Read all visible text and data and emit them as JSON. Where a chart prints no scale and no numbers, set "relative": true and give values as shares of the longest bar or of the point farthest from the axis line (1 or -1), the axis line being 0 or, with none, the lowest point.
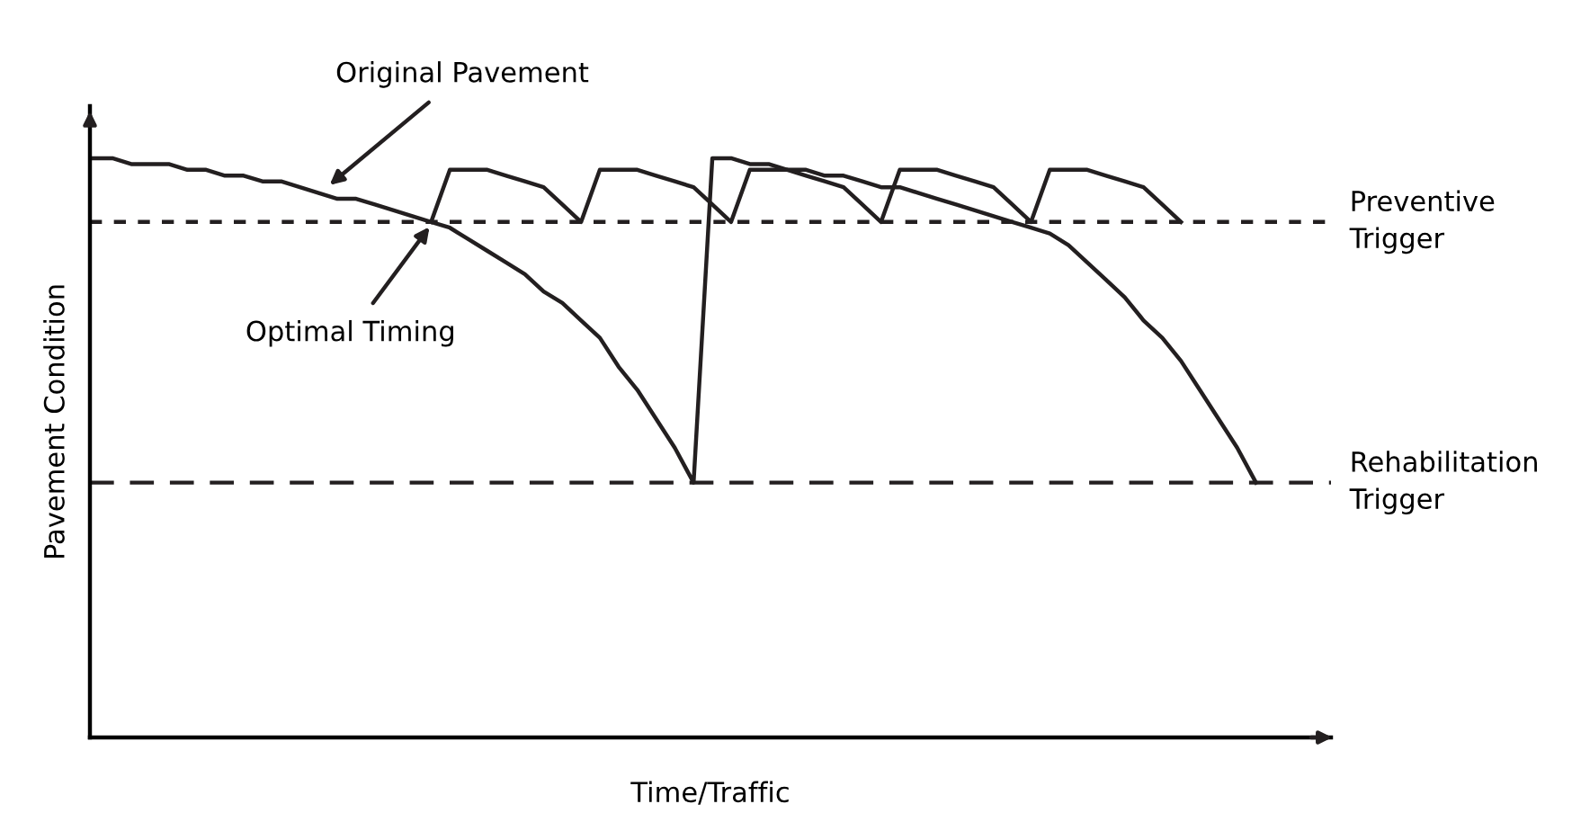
{
  "chart_data": {
    "type": "line",
    "relative": true,
    "xlabel": "Time/Traffic",
    "ylabel": "Pavement Condition",
    "line_style": "solid",
    "categories": [
      null,
      null,
      null,
      null,
      null,
      null,
      null,
      null,
      null,
      null,
      null,
      null,
      null,
      null,
      null,
      null,
      null,
      null,
      null,
      null,
      null,
      null,
      null,
      null,
      null,
      null,
      null,
      null,
      null,
      null,
      null,
      null,
      null,
      null,
      null,
      null,
      null,
      null,
      null,
      null,
      null,
      null,
      null,
      null,
      null,
      null,
      null,
      null,
      null,
      null,
      null,
      null,
      null,
      null,
      null,
      null,
      null,
      null,
      null,
      null,
      null,
      null,
      null,
      null,
      null,
      null,
      null
    ],
    "series": [
      {
        "color": "#231f20",
        "values": [
          1,
          1,
          0.99,
          0.99,
          0.99,
          0.98,
          0.98,
          0.97,
          0.97,
          0.96,
          0.96,
          0.95,
          0.94,
          0.93,
          0.93,
          0.92,
          0.91,
          0.9,
          0.89,
          0.88,
          0.86,
          0.84,
          0.82,
          0.8,
          0.77,
          0.75,
          0.72,
          0.69,
          0.64,
          0.6,
          0.55,
          0.5,
          0.44,
          1,
          1,
          0.99,
          0.99,
          0.98,
          0.98,
          0.97,
          0.97,
          0.96,
          0.95,
          0.95,
          0.94,
          0.93,
          0.92,
          0.91,
          0.9,
          0.89,
          0.88,
          0.87,
          0.85,
          0.82,
          0.79,
          0.76,
          0.72,
          0.69,
          0.65,
          0.6,
          0.55,
          0.5,
          0.44,
          null,
          null,
          null,
          null
        ]
      },
      {
        "color": "#231f20",
        "values": [
          null,
          null,
          null,
          null,
          null,
          null,
          null,
          null,
          null,
          null,
          null,
          null,
          null,
          null,
          null,
          null,
          null,
          null,
          0.89,
          0.98,
          0.98,
          0.98,
          0.97,
          0.96,
          0.95,
          0.92,
          0.89,
          0.98,
          0.98,
          0.98,
          0.97,
          0.96,
          0.95,
          0.92,
          0.89,
          0.98,
          0.98,
          0.98,
          0.97,
          0.96,
          0.95,
          0.92,
          0.89,
          0.98,
          0.98,
          0.98,
          0.97,
          0.96,
          0.95,
          0.92,
          0.89,
          0.98,
          0.98,
          0.98,
          0.97,
          0.96,
          0.95,
          0.92,
          0.89,
          null,
          null,
          null,
          null,
          null,
          null,
          null,
          null
        ]
      }
    ],
    "ref_lines": [
      {
        "axis": "y",
        "value": 0.89,
        "label": "Preventive\nTrigger",
        "color": "#231f20",
        "line_style": "dotted"
      },
      {
        "axis": "y",
        "value": 0.44,
        "label": "Rehabilitation\nTrigger",
        "color": "#231f20",
        "line_style": "dashed"
      }
    ],
    "annotations": [
      "Original Pavement",
      "Optimal Timing"
    ]
  }
}
